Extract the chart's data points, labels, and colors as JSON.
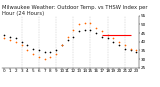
{
  "title": "Milwaukee Weather: Outdoor Temp. vs THSW Index per Hour (24 Hours)",
  "background_color": "#ffffff",
  "plot_bg_color": "#ffffff",
  "grid_color": "#aaaaaa",
  "temp_color": "#000000",
  "thsw_color": "#ff6600",
  "red_line_color": "#ff0000",
  "hours": [
    0,
    1,
    2,
    3,
    4,
    5,
    6,
    7,
    8,
    9,
    10,
    11,
    12,
    13,
    14,
    15,
    16,
    17,
    18,
    19,
    20,
    21,
    22,
    23
  ],
  "temp_values": [
    44,
    43,
    42,
    40,
    38,
    36,
    35,
    34,
    34,
    35,
    38,
    41,
    43,
    46,
    47,
    47,
    45,
    43,
    42,
    40,
    38,
    36,
    35,
    34
  ],
  "thsw_values": [
    42,
    41,
    40,
    38,
    35,
    33,
    31,
    30,
    31,
    33,
    38,
    43,
    47,
    50,
    51,
    51,
    48,
    46,
    44,
    42,
    40,
    38,
    36,
    35
  ],
  "red_line_x": [
    17,
    22
  ],
  "red_line_y": [
    44,
    44
  ],
  "ylim_min": 25,
  "ylim_max": 55,
  "ytick_values": [
    25,
    30,
    35,
    40,
    45,
    50,
    55
  ],
  "ytick_labels": [
    "25",
    "30",
    "35",
    "40",
    "45",
    "50",
    "55"
  ],
  "xlim_min": -0.5,
  "xlim_max": 23.5,
  "vgrid_positions": [
    3,
    6,
    9,
    12,
    15,
    18,
    21
  ],
  "marker_size": 1.5,
  "title_fontsize": 3.8,
  "tick_fontsize": 3.0
}
